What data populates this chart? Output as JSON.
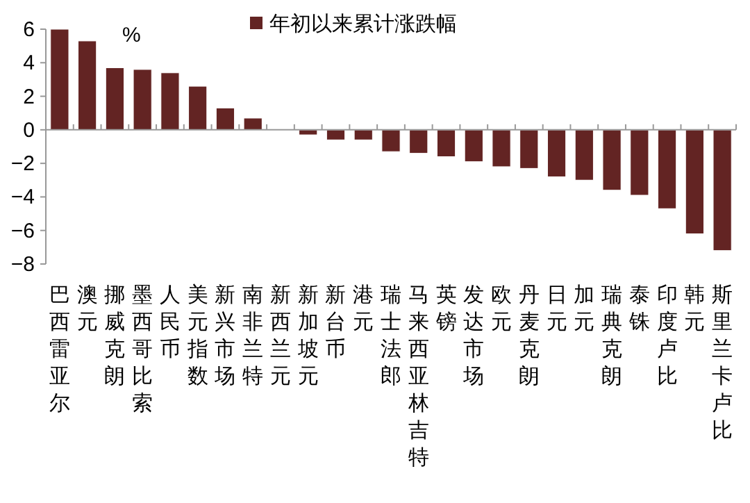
{
  "chart_data": {
    "type": "bar",
    "categories": [
      "巴西雷亚尔",
      "澳元",
      "挪威克朗",
      "墨西哥比索",
      "人民币",
      "美元指数",
      "新兴市场",
      "南非兰特",
      "新西兰元",
      "新加坡元",
      "新台币",
      "港元",
      "瑞士法郎",
      "马来西亚林吉特",
      "英镑",
      "发达市场",
      "欧元",
      "丹麦克朗",
      "日元",
      "加元",
      "瑞典克朗",
      "泰铢",
      "印度卢比",
      "韩元",
      "斯里兰卡卢比"
    ],
    "series": [
      {
        "name": "年初以来累计涨跌幅",
        "color": "#632423",
        "values": [
          6.0,
          5.3,
          3.7,
          3.6,
          3.4,
          2.6,
          1.3,
          0.7,
          0,
          -0.3,
          -0.6,
          -0.6,
          -1.3,
          -1.4,
          -1.6,
          -1.9,
          -2.2,
          -2.3,
          -2.8,
          -3.0,
          -3.6,
          -3.9,
          -4.7,
          -6.2,
          -7.2
        ]
      }
    ],
    "ylabel": "%",
    "ylim": [
      -8,
      6
    ],
    "yticks": [
      -8,
      -6,
      -4,
      -2,
      0,
      2,
      4,
      6
    ],
    "legend": "top"
  }
}
